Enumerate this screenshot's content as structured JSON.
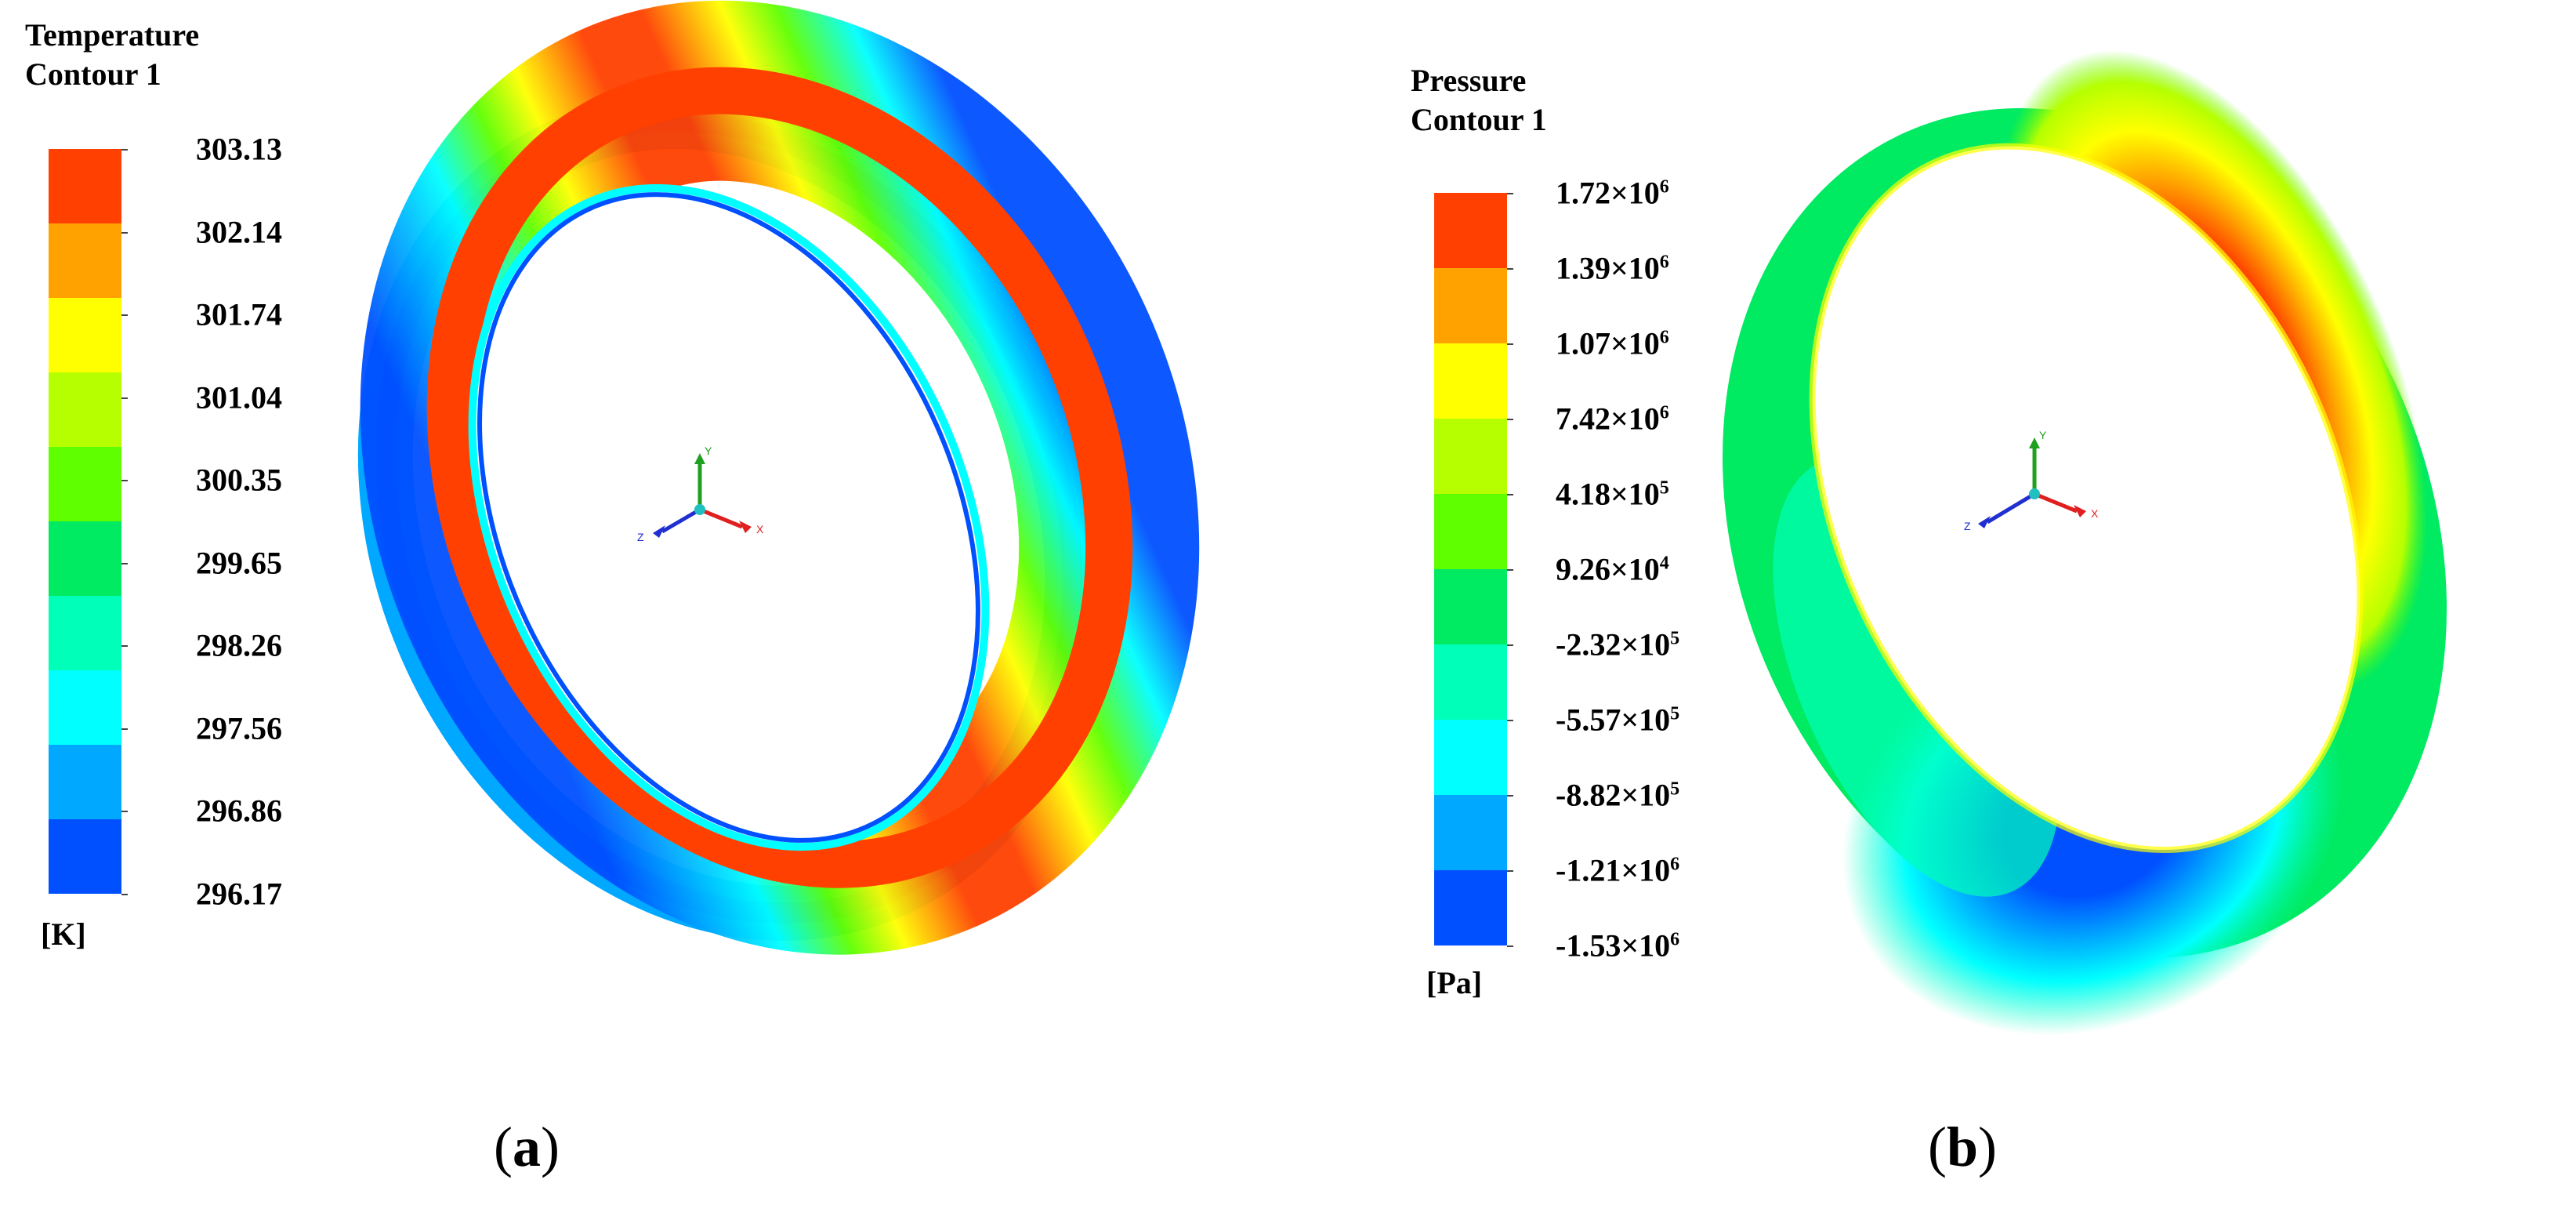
{
  "panels": [
    {
      "id": "a",
      "caption_letter": "a",
      "legend_title": [
        "Temperature",
        "Contour 1"
      ],
      "unit": "[K]",
      "labels": [
        "303.13",
        "302.14",
        "301.74",
        "301.04",
        "300.35",
        "299.65",
        "298.26",
        "297.56",
        "296.86",
        "296.17"
      ],
      "colors": [
        "#ff4000",
        "#ffa200",
        "#ffff00",
        "#b6ff00",
        "#60ff00",
        "#00ea62",
        "#00ffb8",
        "#00ffff",
        "#00a8ff",
        "#0050ff"
      ]
    },
    {
      "id": "b",
      "caption_letter": "b",
      "legend_title": [
        "Pressure",
        "Contour 1"
      ],
      "unit": "[Pa]",
      "labels": [
        {
          "m": "1.72",
          "e": "6"
        },
        {
          "m": "1.39",
          "e": "6"
        },
        {
          "m": "1.07",
          "e": "6"
        },
        {
          "m": "7.42",
          "e": "6"
        },
        {
          "m": "4.18",
          "e": "5"
        },
        {
          "m": "9.26",
          "e": "4"
        },
        {
          "m": "-2.32",
          "e": "5"
        },
        {
          "m": "-5.57",
          "e": "5"
        },
        {
          "m": "-8.82",
          "e": "5"
        },
        {
          "m": "-1.21",
          "e": "6"
        },
        {
          "m": "-1.53",
          "e": "6"
        }
      ],
      "times_sign": "×10",
      "colors": [
        "#ff4000",
        "#ffa200",
        "#ffff00",
        "#b6ff00",
        "#60ff00",
        "#00ea62",
        "#00ffb8",
        "#00ffff",
        "#00a8ff",
        "#0050ff"
      ]
    }
  ],
  "axes_triad": {
    "x": "X",
    "y": "Y",
    "z": "Z",
    "x_color": "#e02020",
    "y_color": "#20a020",
    "z_color": "#2030d0"
  }
}
